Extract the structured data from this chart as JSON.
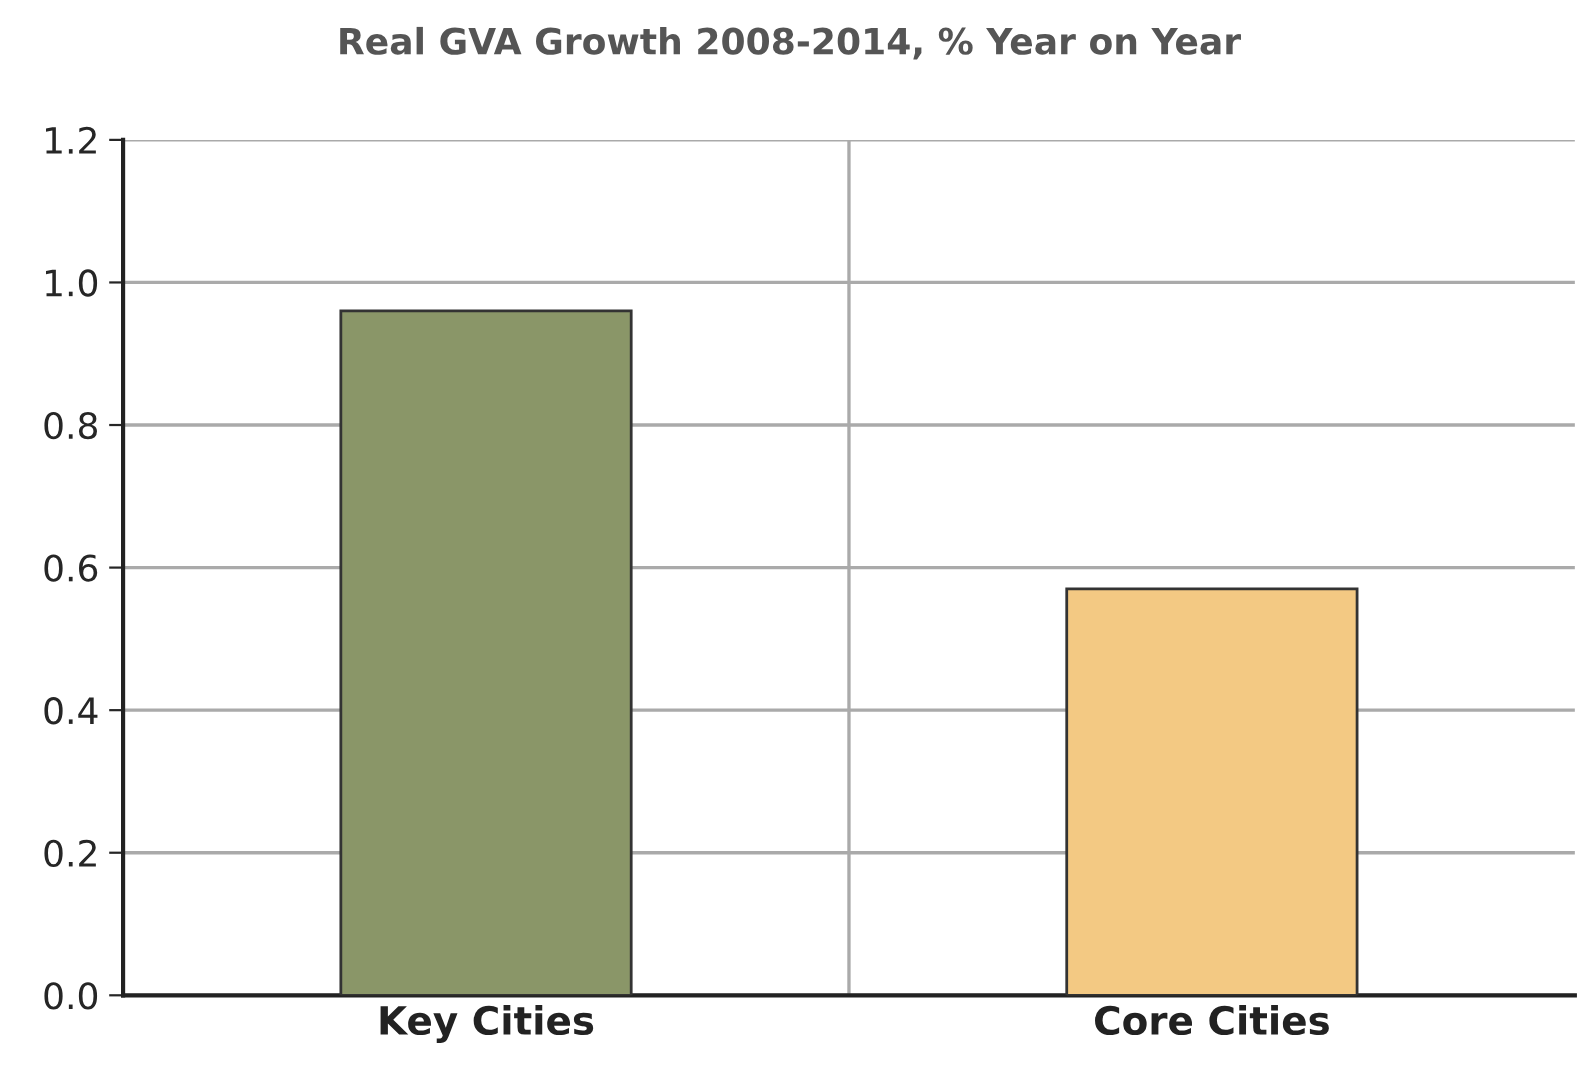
{
  "chart_data": {
    "type": "bar",
    "title": "Real GVA Growth 2008-2014, % Year on Year",
    "categories": [
      "Key Cities",
      "Core Cities"
    ],
    "values": [
      0.96,
      0.57
    ],
    "colors": [
      "#8a9668",
      "#f3c983"
    ],
    "ylim": [
      0,
      1.2
    ],
    "yticks": [
      {
        "value": 0,
        "label": "0.0"
      },
      {
        "value": 0.2,
        "label": "0.2"
      },
      {
        "value": 0.4,
        "label": "0.4"
      },
      {
        "value": 0.6,
        "label": "0.6"
      },
      {
        "value": 0.8,
        "label": "0.8"
      },
      {
        "value": 1.0,
        "label": "1.0"
      },
      {
        "value": 1.2,
        "label": "1.2"
      }
    ],
    "grid": true
  }
}
